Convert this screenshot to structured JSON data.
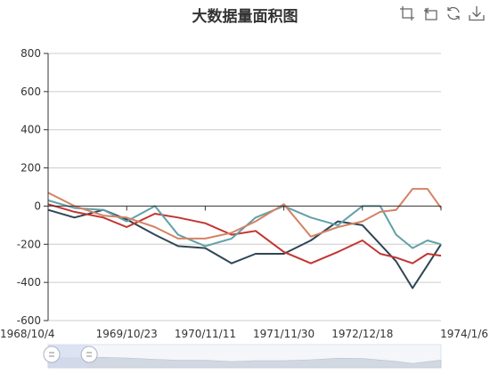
{
  "title": "大数据量面积图",
  "toolbox": {
    "icons": [
      "zoom-select-icon",
      "zoom-reset-icon",
      "restore-icon",
      "save-image-icon"
    ]
  },
  "colors": {
    "axis": "#333333",
    "grid": "#cccccc",
    "slider_fill": "#d2dbee",
    "slider_handle": "#ffffff",
    "series": [
      "#2f4554",
      "#c23531",
      "#61a0a8",
      "#d48265"
    ]
  },
  "chart_data": {
    "type": "line",
    "title": "大数据量面积图",
    "xlabel": "",
    "ylabel": "",
    "ylim": [
      -600,
      800
    ],
    "yticks": [
      -600,
      -400,
      -200,
      0,
      200,
      400,
      600,
      800
    ],
    "xlim": [
      "1968/10/4",
      "1974/1/6"
    ],
    "xticks": [
      "1968/10/4",
      "1969/10/23",
      "1970/11/11",
      "1971/11/30",
      "1972/12/18",
      "1974/1/6"
    ],
    "grid": "horizontal",
    "legend": "none",
    "series": [
      {
        "x": [
          "1968/10/4",
          "1969/2/10",
          "1969/7/1",
          "1969/10/23",
          "1970/3/10",
          "1970/7/1",
          "1970/11/11",
          "1971/3/20",
          "1971/7/15",
          "1971/11/30",
          "1972/4/10",
          "1972/8/20",
          "1972/12/18",
          "1973/3/15",
          "1973/6/1",
          "1973/8/20",
          "1973/11/1",
          "1974/1/6"
        ],
        "y": [
          -20,
          -60,
          -20,
          -70,
          -150,
          -210,
          -220,
          -300,
          -250,
          -250,
          -180,
          -80,
          -100,
          -200,
          -290,
          -430,
          -310,
          -200
        ]
      },
      {
        "x": [
          "1968/10/4",
          "1969/2/10",
          "1969/7/1",
          "1969/10/23",
          "1970/3/10",
          "1970/7/1",
          "1970/11/11",
          "1971/3/20",
          "1971/7/15",
          "1971/11/30",
          "1972/4/10",
          "1972/8/20",
          "1972/12/18",
          "1973/3/15",
          "1973/6/1",
          "1973/8/20",
          "1973/11/1",
          "1974/1/6"
        ],
        "y": [
          10,
          -30,
          -60,
          -110,
          -40,
          -60,
          -90,
          -150,
          -130,
          -240,
          -300,
          -240,
          -180,
          -250,
          -270,
          -300,
          -250,
          -260
        ]
      },
      {
        "x": [
          "1968/10/4",
          "1969/2/10",
          "1969/7/1",
          "1969/10/23",
          "1970/3/10",
          "1970/7/1",
          "1970/11/11",
          "1971/3/20",
          "1971/7/15",
          "1971/11/30",
          "1972/4/10",
          "1972/8/20",
          "1972/12/18",
          "1973/3/15",
          "1973/6/1",
          "1973/8/20",
          "1973/11/1",
          "1974/1/6"
        ],
        "y": [
          30,
          -10,
          -20,
          -80,
          0,
          -150,
          -210,
          -170,
          -60,
          0,
          -60,
          -100,
          0,
          0,
          -150,
          -220,
          -180,
          -200
        ]
      },
      {
        "x": [
          "1968/10/4",
          "1969/2/10",
          "1969/7/1",
          "1969/10/23",
          "1970/3/10",
          "1970/7/1",
          "1970/11/11",
          "1971/3/20",
          "1971/7/15",
          "1971/11/30",
          "1972/4/10",
          "1972/8/20",
          "1972/12/18",
          "1973/3/15",
          "1973/6/1",
          "1973/8/20",
          "1973/11/1",
          "1974/1/6"
        ],
        "y": [
          70,
          0,
          -50,
          -60,
          -110,
          -170,
          -170,
          -140,
          -80,
          10,
          -160,
          -110,
          -80,
          -30,
          -20,
          90,
          90,
          -10
        ]
      }
    ]
  },
  "zoom_slider": {
    "start_fraction": 0.0,
    "end_fraction": 0.1
  }
}
